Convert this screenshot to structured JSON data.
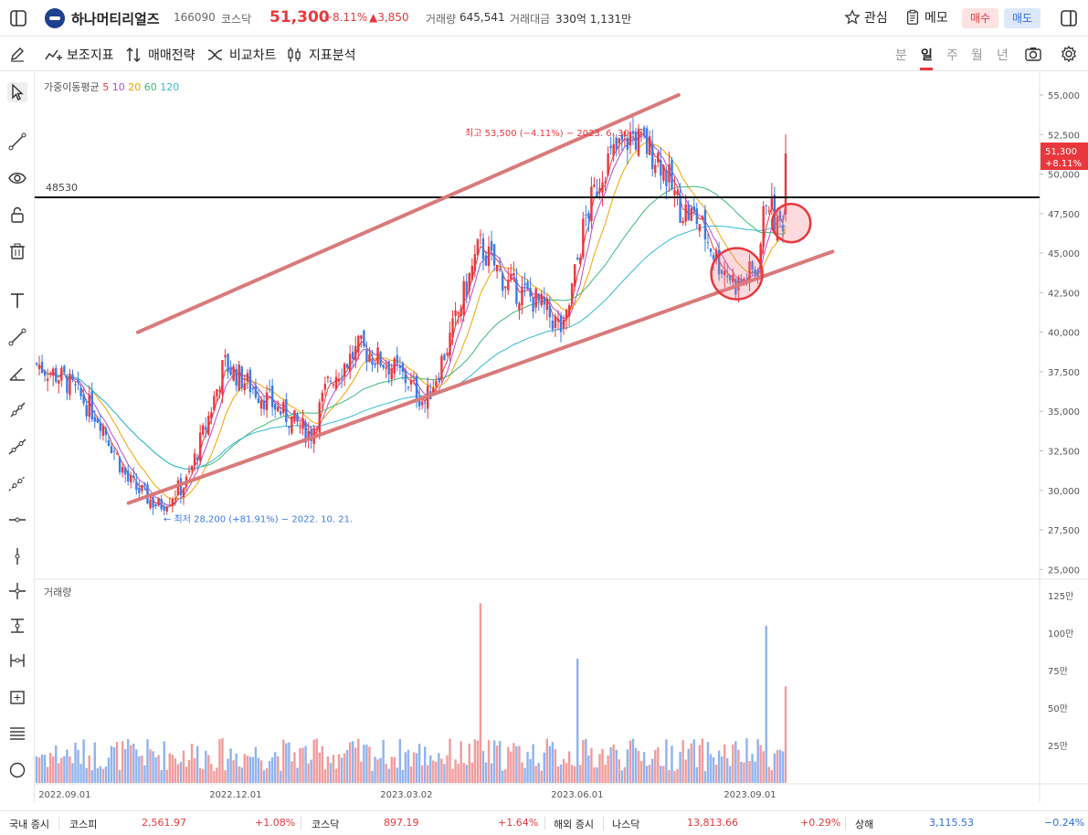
{
  "header": {
    "stock_name": "하나머티리얼즈",
    "stock_code": "166090",
    "market": "코스닥",
    "price": "51,300",
    "change_pct": "+8.11%",
    "change_amt": "▲3,850",
    "volume_label": "거래량",
    "volume_value": "645,541",
    "amount_label": "거래대금",
    "amount_value": "330억 1,131만",
    "fav_label": "관심",
    "memo_label": "메모",
    "buy_label": "매수",
    "sell_label": "매도"
  },
  "toolbar": {
    "indicator_label": "보조지표",
    "strategy_label": "매매전략",
    "compare_label": "비교차트",
    "analysis_label": "지표분석",
    "periods": [
      "분",
      "일",
      "주",
      "월",
      "년"
    ],
    "selected_period": "일"
  },
  "legend": {
    "ma_title": "가중이동평균",
    "ma_periods": [
      {
        "label": "5",
        "color": "#e8383d"
      },
      {
        "label": "10",
        "color": "#b24bd9"
      },
      {
        "label": "20",
        "color": "#f2a400"
      },
      {
        "label": "60",
        "color": "#3cb878"
      },
      {
        "label": "120",
        "color": "#35b9d4"
      }
    ],
    "volume_title": "거래량"
  },
  "price_axis": {
    "ticks": [
      "55,000",
      "52,500",
      "50,000",
      "47,500",
      "45,000",
      "42,500",
      "40,000",
      "37,500",
      "35,000",
      "32,500",
      "30,000",
      "27,500",
      "25,000"
    ]
  },
  "volume_axis": {
    "ticks": [
      "125만",
      "100만",
      "75만",
      "50만",
      "25만"
    ]
  },
  "date_axis": {
    "ticks": [
      "2022.09.01",
      "2022.12.01",
      "2023.03.02",
      "2023.06.01",
      "2023.09.01"
    ]
  },
  "annotations": {
    "high_text": "최고 53,500 (−4.11%) − 2023. 6. 30.",
    "low_text": "최저 28,200 (+81.91%) − 2022. 10. 21.",
    "hline_label": "48530",
    "current_price_tag": "51,300",
    "current_pct_tag": "+8.11%"
  },
  "chart_data": {
    "type": "candlestick",
    "y_range": [
      24500,
      56500
    ],
    "hline_value": 48530,
    "price_anchors": [
      {
        "date": "2022.08.17",
        "close": 38000
      },
      {
        "date": "2022.09.01",
        "close": 37000
      },
      {
        "date": "2022.09.20",
        "close": 34500
      },
      {
        "date": "2022.10.05",
        "close": 30500
      },
      {
        "date": "2022.10.21",
        "close": 29000
      },
      {
        "date": "2022.11.05",
        "close": 30500
      },
      {
        "date": "2022.11.15",
        "close": 34000
      },
      {
        "date": "2022.11.25",
        "close": 38000
      },
      {
        "date": "2022.12.10",
        "close": 36500
      },
      {
        "date": "2022.12.25",
        "close": 35000
      },
      {
        "date": "2023.01.10",
        "close": 33500
      },
      {
        "date": "2023.01.20",
        "close": 37000
      },
      {
        "date": "2023.02.05",
        "close": 39000
      },
      {
        "date": "2023.02.20",
        "close": 38000
      },
      {
        "date": "2023.03.02",
        "close": 37000
      },
      {
        "date": "2023.03.12",
        "close": 35500
      },
      {
        "date": "2023.03.25",
        "close": 39500
      },
      {
        "date": "2023.04.10",
        "close": 45500
      },
      {
        "date": "2023.04.25",
        "close": 43000
      },
      {
        "date": "2023.05.10",
        "close": 42000
      },
      {
        "date": "2023.05.25",
        "close": 40000
      },
      {
        "date": "2023.06.05",
        "close": 47000
      },
      {
        "date": "2023.06.15",
        "close": 50500
      },
      {
        "date": "2023.06.30",
        "close": 52500
      },
      {
        "date": "2023.07.15",
        "close": 51000
      },
      {
        "date": "2023.07.25",
        "close": 48000
      },
      {
        "date": "2023.08.05",
        "close": 47000
      },
      {
        "date": "2023.08.15",
        "close": 44500
      },
      {
        "date": "2023.08.25",
        "close": 43000
      },
      {
        "date": "2023.09.05",
        "close": 44000
      },
      {
        "date": "2023.09.10",
        "close": 49000
      },
      {
        "date": "2023.09.15",
        "close": 46500
      },
      {
        "date": "2023.09.20",
        "close": 47500
      }
    ],
    "last_close": 51300,
    "last_high": 52500,
    "volume_spikes": [
      {
        "date": "2023.04.10",
        "volume": 1200000
      },
      {
        "date": "2023.06.01",
        "volume": 830000
      },
      {
        "date": "2023.09.10",
        "volume": 1050000
      },
      {
        "date": "2023.09.20",
        "volume": 645541
      }
    ],
    "trend_lines": [
      {
        "from": [
          "2022.10.10",
          40000
        ],
        "to": [
          "2023.07.25",
          55000
        ]
      },
      {
        "from": [
          "2022.10.05",
          29200
        ],
        "to": [
          "2023.10.15",
          45100
        ]
      }
    ]
  }
}
